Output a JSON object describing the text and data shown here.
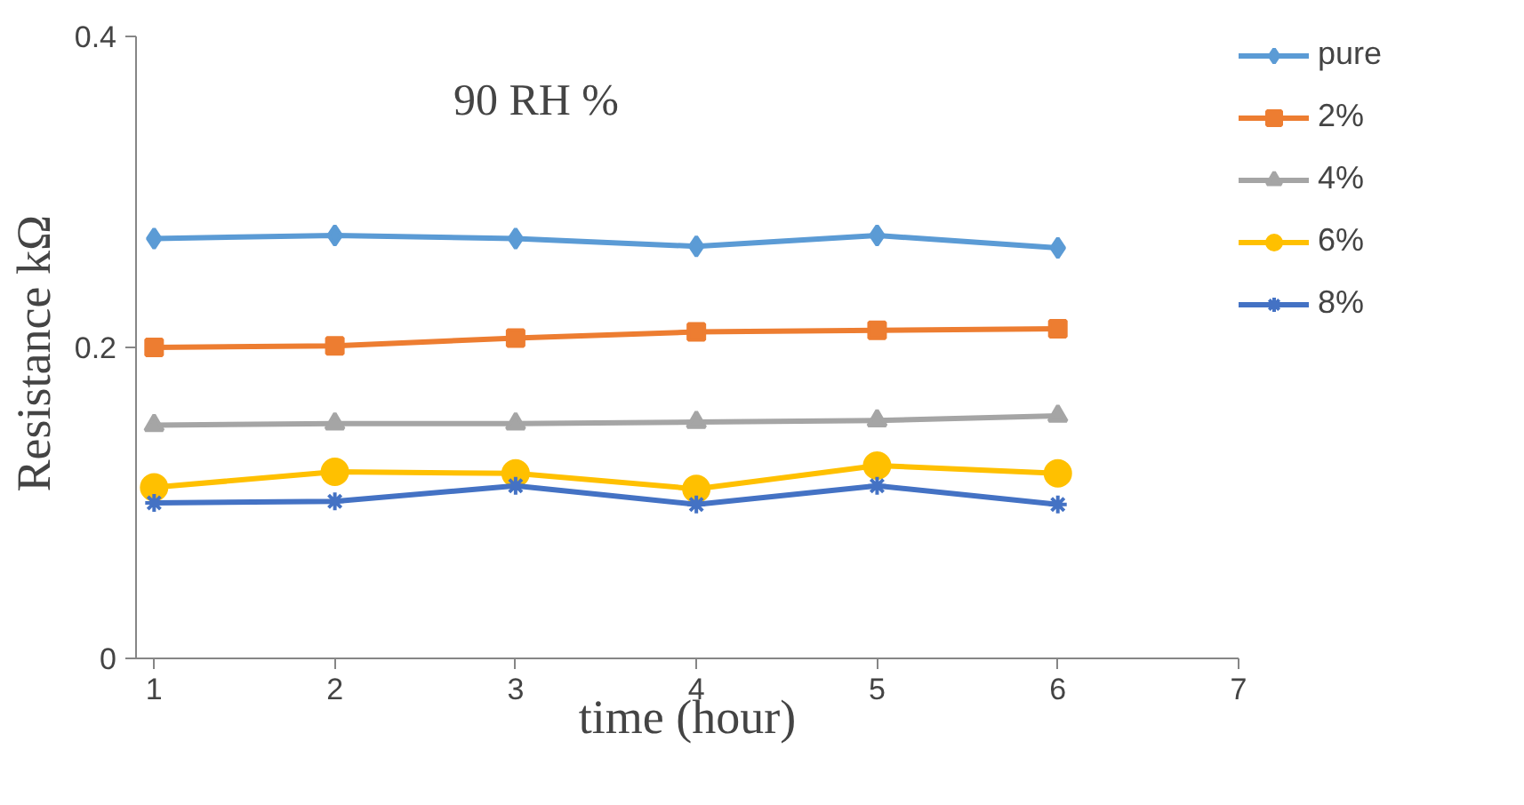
{
  "chart_data": {
    "type": "line",
    "title": "90 RH %",
    "xlabel": "time (hour)",
    "ylabel": "Resistance  kΩ",
    "x": [
      1,
      2,
      3,
      4,
      5,
      6
    ],
    "series": [
      {
        "name": "pure",
        "color": "#5b9bd5",
        "marker": "diamond",
        "values": [
          0.27,
          0.272,
          0.27,
          0.265,
          0.272,
          0.264
        ]
      },
      {
        "name": "2%",
        "color": "#ed7d31",
        "marker": "square",
        "values": [
          0.2,
          0.201,
          0.206,
          0.21,
          0.211,
          0.212
        ]
      },
      {
        "name": "4%",
        "color": "#a5a5a5",
        "marker": "triangle",
        "values": [
          0.15,
          0.151,
          0.151,
          0.152,
          0.153,
          0.156
        ]
      },
      {
        "name": "6%",
        "color": "#ffc000",
        "marker": "circle",
        "values": [
          0.11,
          0.12,
          0.119,
          0.109,
          0.124,
          0.119
        ]
      },
      {
        "name": "8%",
        "color": "#4472c4",
        "marker": "cross",
        "values": [
          0.1,
          0.101,
          0.111,
          0.099,
          0.111,
          0.099
        ]
      }
    ],
    "xlim": [
      0.9,
      7
    ],
    "ylim": [
      0,
      0.4
    ],
    "xticks": [
      1,
      2,
      3,
      4,
      5,
      6,
      7
    ],
    "yticks": [
      0,
      0.2,
      0.4
    ],
    "grid": false,
    "legend": "right"
  }
}
